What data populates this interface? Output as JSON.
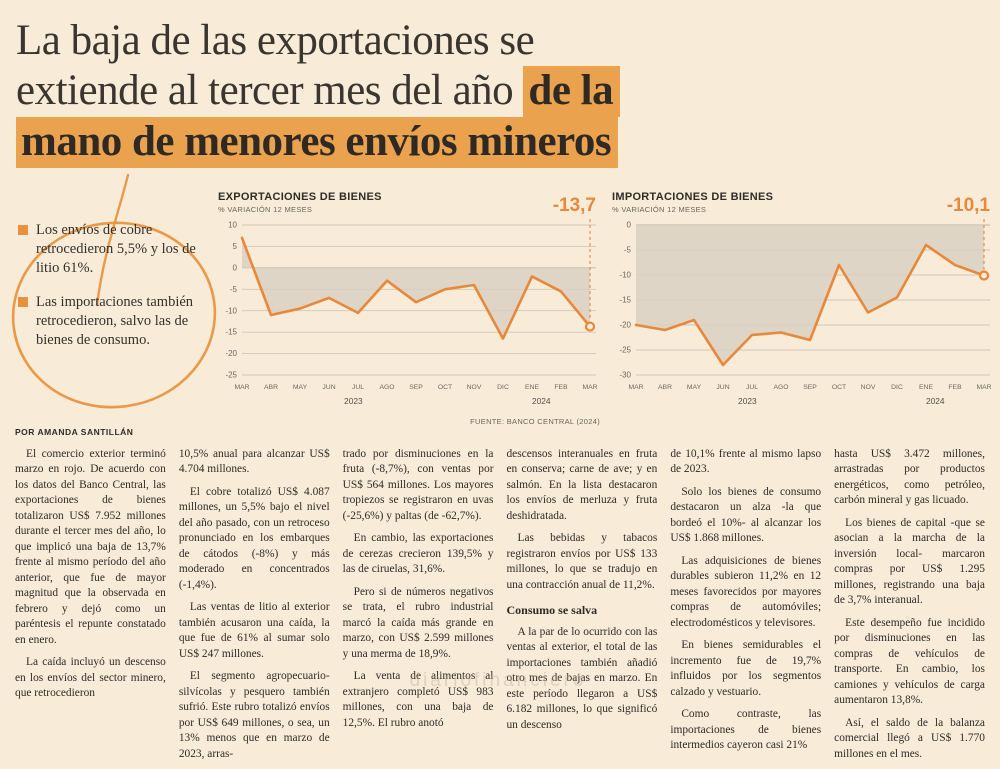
{
  "page": {
    "headline": {
      "line1": "La baja de las exportaciones se",
      "line2_regular": "extiende al tercer mes del año ",
      "line2_highlight": "de la",
      "line3_highlight": "mano de menores envíos mineros"
    },
    "byline": "POR AMANDA SANTILLÁN",
    "watermark": "diariofinanciero"
  },
  "bullets": [
    "Los envíos de cobre retrocedieron 5,5% y los de litio 61%.",
    "Las importaciones también retrocedieron, salvo las de bienes de consumo."
  ],
  "source": "FUENTE: BANCO CENTRAL (2024)",
  "colors": {
    "accent_orange": "#e8883b",
    "highlight_orange": "#eba24f",
    "background_cream": "#f8ecd8",
    "chart_fill_gray": "#d7d0c2"
  },
  "chart_data": [
    {
      "type": "line",
      "title": "EXPORTACIONES DE BIENES",
      "subtitle": "% VARIACIÓN 12 MESES",
      "categories": [
        "MAR",
        "ABR",
        "MAY",
        "JUN",
        "JUL",
        "AGO",
        "SEP",
        "OCT",
        "NOV",
        "DIC",
        "ENE",
        "FEB",
        "MAR"
      ],
      "year_labels": [
        {
          "label": "2023",
          "position": 0.32
        },
        {
          "label": "2024",
          "position": 0.86
        }
      ],
      "values": [
        7,
        -11,
        -9.5,
        -7,
        -10.5,
        -3,
        -8,
        -5,
        -4,
        -16.5,
        -2,
        -5.5,
        -13.7
      ],
      "end_label": "-13,7",
      "ylim": [
        -25,
        10
      ],
      "yticks": [
        10,
        5,
        0,
        -5,
        -10,
        -15,
        -20,
        -25
      ],
      "grid": true,
      "line_color": "#e8883b"
    },
    {
      "type": "line",
      "title": "IMPORTACIONES DE BIENES",
      "subtitle": "% VARIACIÓN 12 MESES",
      "categories": [
        "MAR",
        "ABR",
        "MAY",
        "JUN",
        "JUL",
        "AGO",
        "SEP",
        "OCT",
        "NOV",
        "DIC",
        "ENE",
        "FEB",
        "MAR"
      ],
      "year_labels": [
        {
          "label": "2023",
          "position": 0.32
        },
        {
          "label": "2024",
          "position": 0.86
        }
      ],
      "values": [
        -20,
        -21,
        -19,
        -28,
        -22,
        -21.5,
        -23,
        -8,
        -17.5,
        -14.5,
        -4,
        -8,
        -10.1
      ],
      "end_label": "-10,1",
      "ylim": [
        -30,
        0
      ],
      "yticks": [
        0,
        -5,
        -10,
        -15,
        -20,
        -25,
        -30
      ],
      "grid": true,
      "line_color": "#e8883b"
    }
  ],
  "article": {
    "columns": [
      [
        "El comercio exterior terminó marzo en rojo. De acuerdo con los datos del Banco Central, las exportaciones de bienes totalizaron US$ 7.952 millones durante el tercer mes del año, lo que implicó una baja de 13,7% frente al mismo período del año anterior, que fue de mayor magnitud que la observada en febrero y dejó como un paréntesis el repunte constatado en enero.",
        "La caída incluyó un descenso en los envíos del sector minero, que retrocedieron"
      ],
      [
        "10,5% anual para alcanzar US$ 4.704 millones.",
        "El cobre totalizó US$ 4.087 millones, un 5,5% bajo el nivel del año pasado, con un retroceso pronunciado en los embarques de cátodos (-8%) y más moderado en concentrados (-1,4%).",
        "Las ventas de litio al exterior también acusaron una caída, la que fue de 61% al sumar solo US$ 247 millones.",
        "El segmento agropecuario-silvícolas y pesquero también sufrió. Este rubro totalizó envíos por US$ 649 millones, o sea, un 13% menos que en marzo de 2023, arras-"
      ],
      [
        "trado por disminuciones en la fruta (-8,7%), con ventas por US$ 564 millones. Los mayores tropiezos se registraron en uvas (-25,6%) y paltas (de -62,7%).",
        "En cambio, las exportaciones de cerezas crecieron 139,5% y las de ciruelas, 31,6%.",
        "Pero si de números negativos se trata, el rubro industrial marcó la caída más grande en marzo, con US$ 2.599 millones y una merma de 18,9%.",
        "La venta de alimentos al extranjero completó US$ 983 millones, con una baja de 12,5%. El rubro anotó"
      ],
      [
        "descensos interanuales en fruta en conserva; carne de ave; y en salmón. En la lista destacaron los envíos de merluza y fruta deshidratada.",
        "Las bebidas y tabacos registraron envíos por US$ 133 millones, lo que se tradujo en una contracción anual de 11,2%.",
        {
          "subhead": "Consumo se salva"
        },
        "A la par de lo ocurrido con las ventas al exterior, el total de las importaciones también añadió otro mes de bajas en marzo. En este período llegaron a US$ 6.182 millones, lo que significó un descenso"
      ],
      [
        "de 10,1% frente al mismo lapso de 2023.",
        "Solo los bienes de consumo destacaron un alza -la que bordeó el 10%- al alcanzar los US$ 1.868 millones.",
        "Las adquisiciones de bienes durables subieron 11,2% en 12 meses favorecidos por mayores compras de automóviles; electrodomésticos y televisores.",
        "En bienes semidurables el incremento fue de 19,7% influidos por los segmentos calzado y vestuario.",
        "Como contraste, las importaciones de bienes intermedios cayeron casi 21%"
      ],
      [
        "hasta US$ 3.472 millones, arrastradas por productos energéticos, como petróleo, carbón mineral y gas licuado.",
        "Los bienes de capital -que se asocian a la marcha de la inversión local- marcaron compras por US$ 1.295 millones, registrando una baja de 3,7% interanual.",
        "Este desempeño fue incidido por disminuciones en las compras de vehículos de transporte. En cambio, los camiones y vehículos de carga aumentaron 13,8%.",
        "Así, el saldo de la balanza comercial llegó a US$ 1.770 millones en el mes."
      ]
    ]
  }
}
